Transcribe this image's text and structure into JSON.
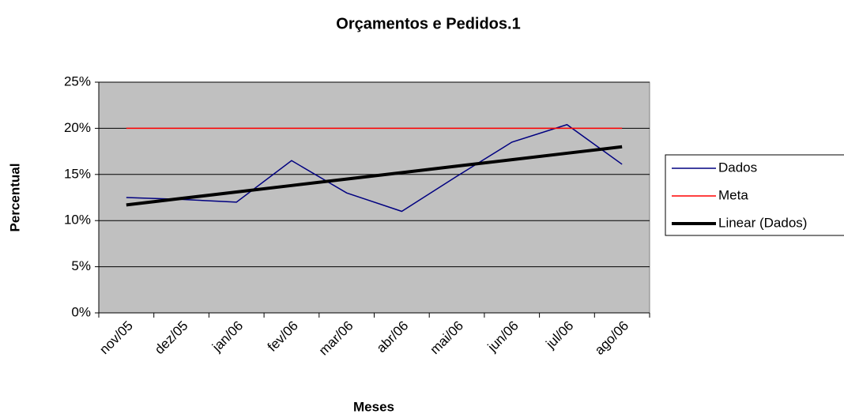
{
  "chart_data": {
    "type": "line",
    "title": "Orçamentos e Pedidos.1",
    "xlabel": "Meses",
    "ylabel": "Percentual",
    "categories": [
      "nov/05",
      "dez/05",
      "jan/06",
      "fev/06",
      "mar/06",
      "abr/06",
      "mai/06",
      "jun/06",
      "jul/06",
      "ago/06"
    ],
    "series": [
      {
        "name": "Dados",
        "color": "#000080",
        "width": 1.5,
        "values": [
          12.5,
          12.3,
          12.0,
          16.5,
          13.0,
          11.0,
          14.8,
          18.5,
          20.4,
          16.1
        ]
      },
      {
        "name": "Meta",
        "color": "#ff0000",
        "width": 1.5,
        "values": [
          20,
          20,
          20,
          20,
          20,
          20,
          20,
          20,
          20,
          20
        ]
      },
      {
        "name": "Linear (Dados)",
        "color": "#000000",
        "width": 4,
        "values": [
          11.7,
          12.4,
          13.1,
          13.8,
          14.5,
          15.2,
          15.9,
          16.6,
          17.3,
          18.0
        ]
      }
    ],
    "ylim": [
      0,
      25
    ],
    "yticks": [
      {
        "value": 0,
        "label": "0%"
      },
      {
        "value": 5,
        "label": "5%"
      },
      {
        "value": 10,
        "label": "10%"
      },
      {
        "value": 15,
        "label": "15%"
      },
      {
        "value": 20,
        "label": "20%"
      },
      {
        "value": 25,
        "label": "25%"
      }
    ],
    "grid": true,
    "plot_background": "#c0c0c0",
    "legend": "right"
  }
}
